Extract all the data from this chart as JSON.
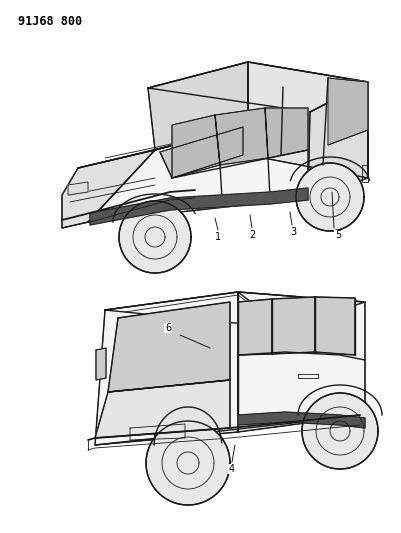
{
  "title": "91J68 800",
  "title_fontsize": 8.5,
  "title_fontfamily": "monospace",
  "background_color": "#ffffff",
  "line_color": "#1a1a1a",
  "fig_width": 4.01,
  "fig_height": 5.33,
  "dpi": 100
}
